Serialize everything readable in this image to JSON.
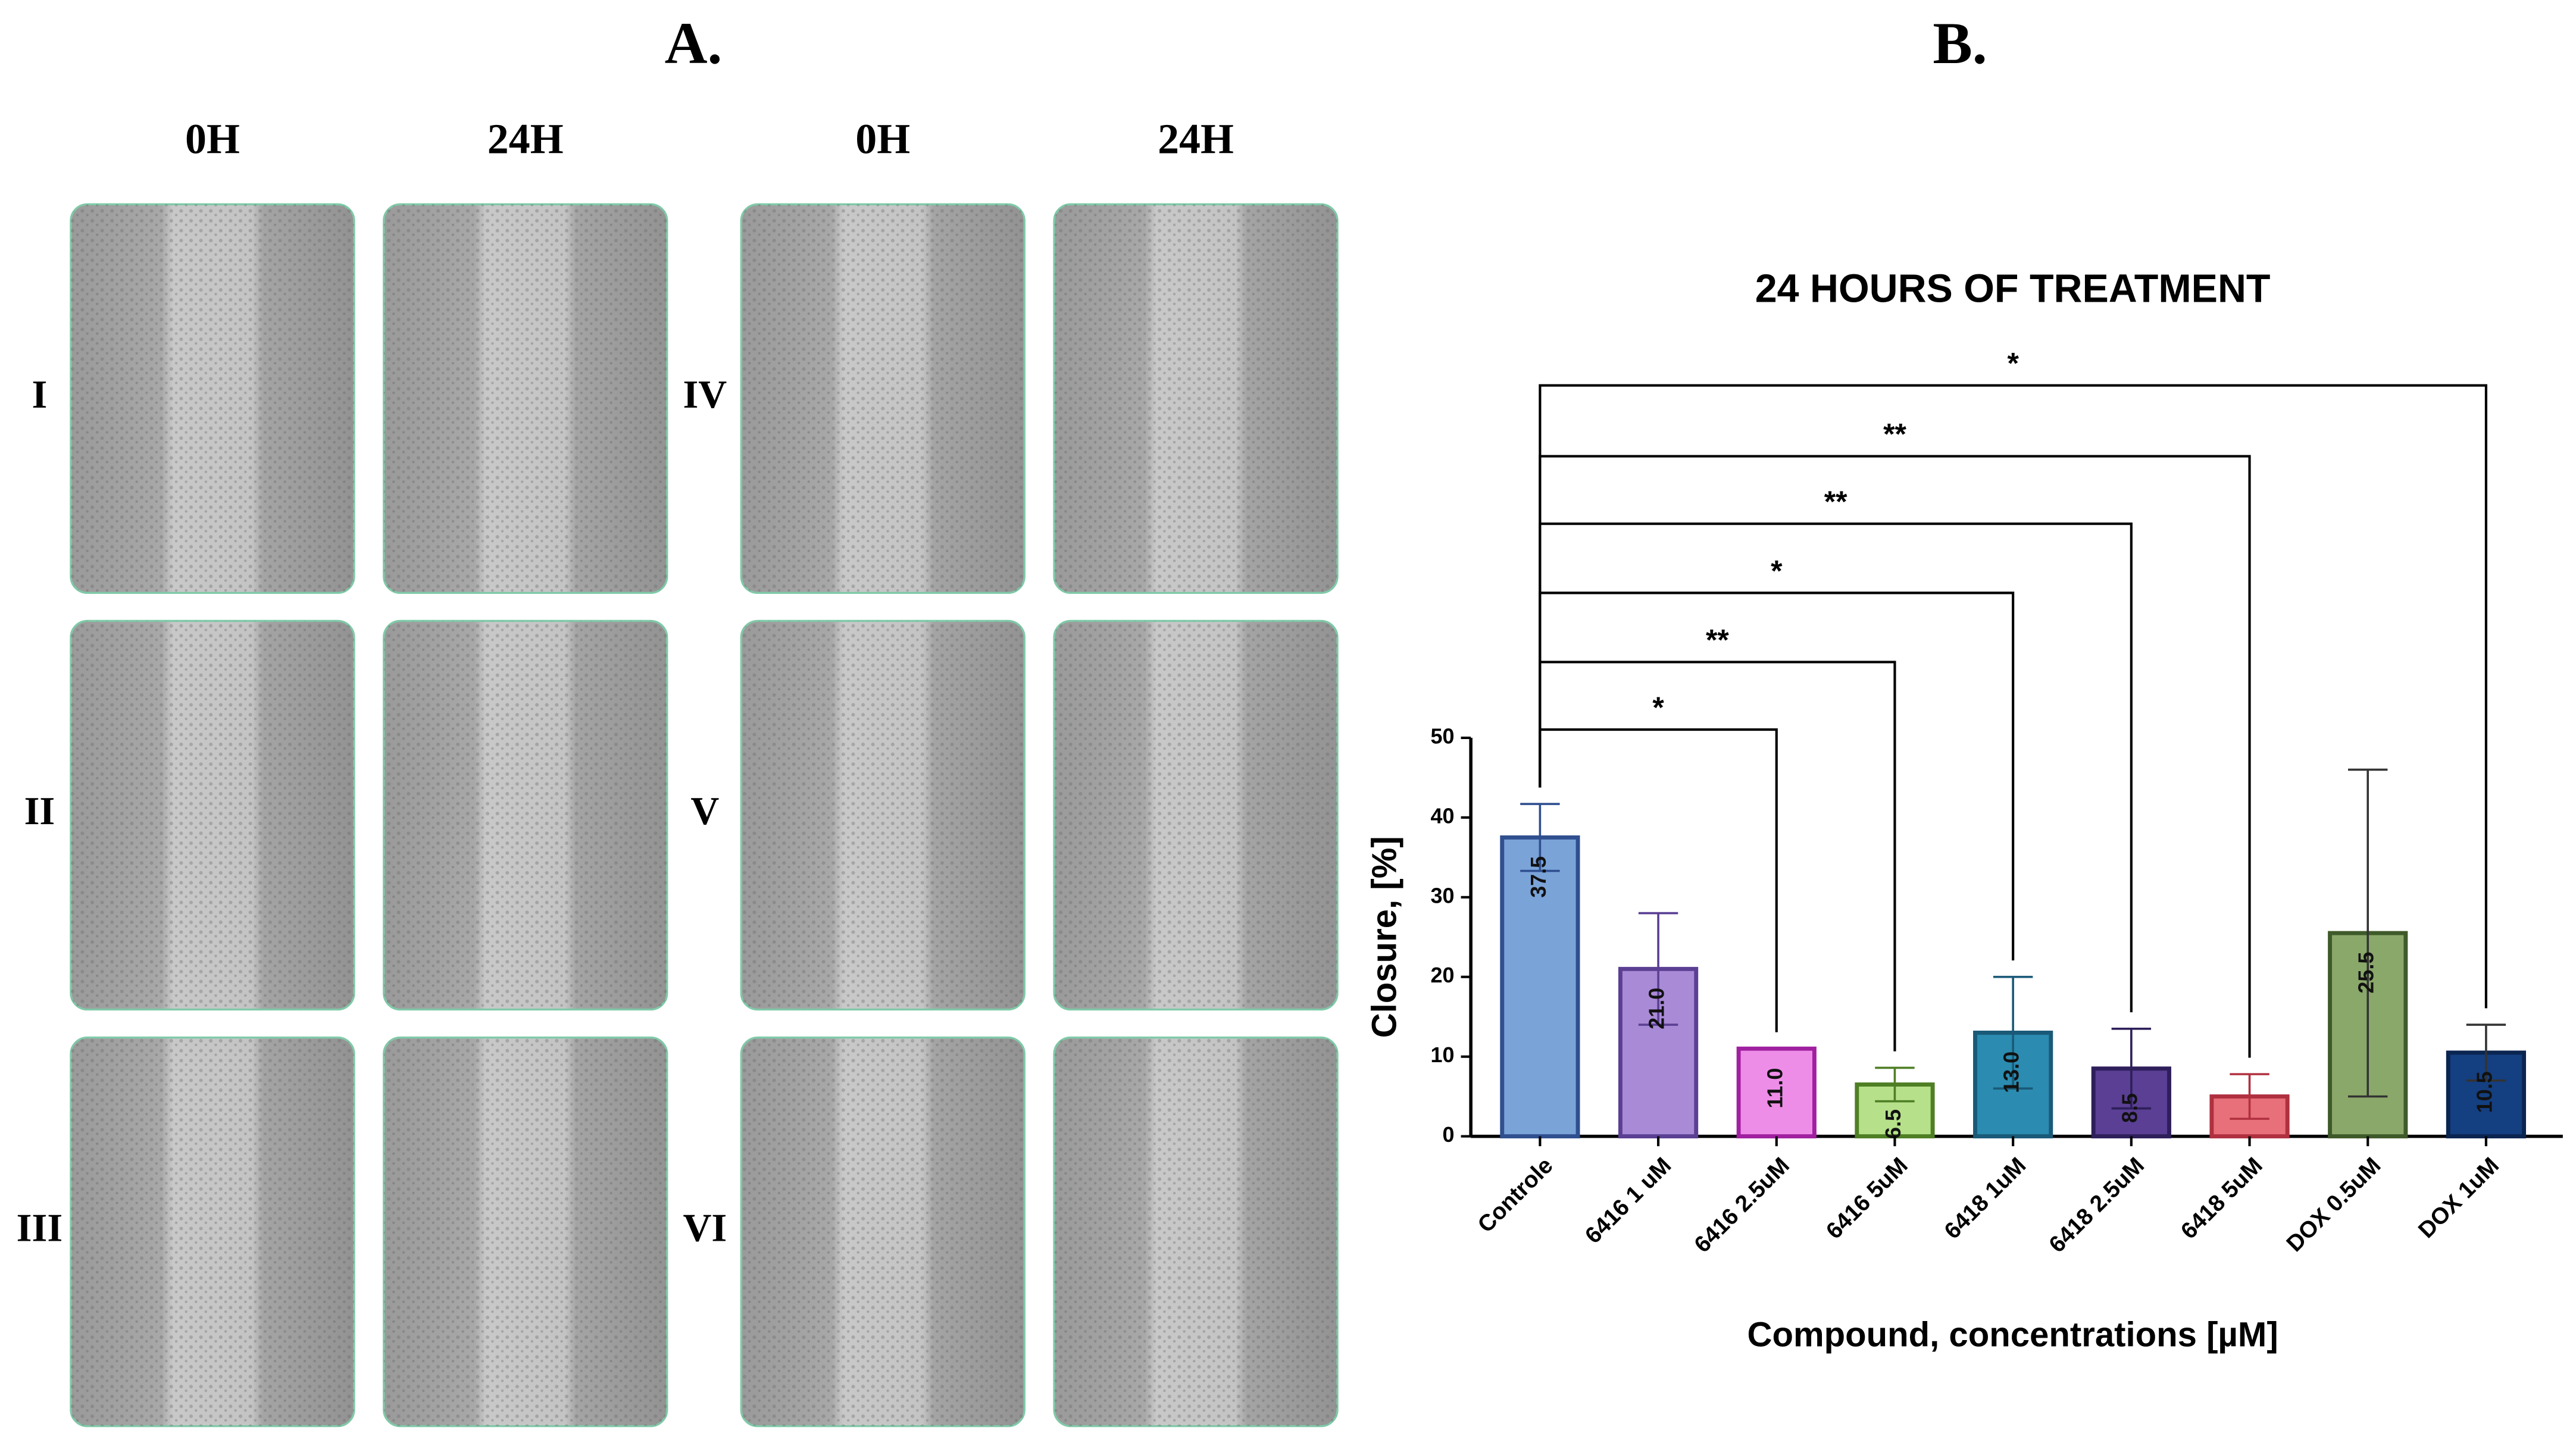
{
  "panel_a": {
    "label": "A.",
    "columns": [
      "0H",
      "24H",
      "0H",
      "24H"
    ],
    "rows": [
      "I",
      "II",
      "III",
      "IV",
      "V",
      "VI"
    ]
  },
  "chart_data": {
    "type": "bar",
    "panel_label": "B.",
    "title": "24 HOURS OF TREATMENT",
    "x_label": "Compound, concentrations [µM]",
    "y_label": "Closure, [%]",
    "categories": [
      "Controle",
      "6416 1 uM",
      "6416 2.5uM",
      "6416 5uM",
      "6418 1uM",
      "6418 2.5uM",
      "6418 5uM",
      "DOX 0.5uM",
      "DOX 1uM"
    ],
    "values": [
      37.5,
      21.0,
      11.0,
      6.5,
      13.0,
      8.5,
      5.0,
      25.5,
      10.5
    ],
    "value_labels": [
      "37.5",
      "21.0",
      "11.0",
      "6.5",
      "13.0",
      "8.5",
      null,
      "25.5",
      "10.5"
    ],
    "errors": [
      4.2,
      7,
      0,
      2.1,
      7,
      5,
      2.8,
      20.5,
      3.5
    ],
    "colors": [
      "#7aa3d8",
      "#a98ad6",
      "#ee8de8",
      "#b6e08a",
      "#2b8bb0",
      "#5a3f94",
      "#e8707a",
      "#8aa86a",
      "#143f80"
    ],
    "edge_colors": [
      "#2f4f8f",
      "#5b3f93",
      "#a020a0",
      "#4f7f25",
      "#1a5a78",
      "#2e1f5a",
      "#b03040",
      "#3f5a2a",
      "#0a2550"
    ],
    "ylim": [
      0,
      50
    ],
    "yticks": [
      0,
      10,
      20,
      30,
      40,
      50
    ],
    "significance": [
      {
        "to": 2,
        "label": "*"
      },
      {
        "to": 3,
        "label": "**"
      },
      {
        "to": 4,
        "label": "*"
      },
      {
        "to": 5,
        "label": "**"
      },
      {
        "to": 6,
        "label": "**"
      },
      {
        "to": 8,
        "label": "*"
      }
    ]
  }
}
